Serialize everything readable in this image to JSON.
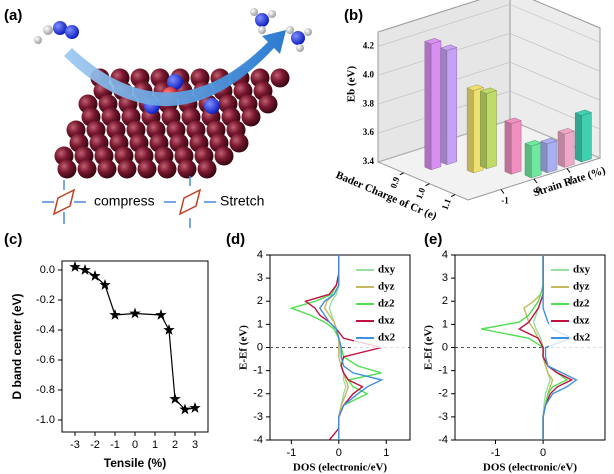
{
  "illustration": {
    "label": "(a)",
    "captions": [
      "compress",
      "Stretch"
    ]
  },
  "chart_data": [
    {
      "type": "bar3d",
      "panel_label": "(b)",
      "zlabel": "Eb (eV)",
      "xlabel": "Bader Charge of Cr (e)",
      "ylabel": "Strain Rate (%)",
      "values": [
        4.27,
        4.19,
        3.97,
        3.92,
        3.75,
        3.62,
        3.6,
        3.63,
        3.72
      ],
      "colors": [
        "#d890f0",
        "#c8a0f4",
        "#f0e070",
        "#c0dc68",
        "#f090c0",
        "#70e8a0",
        "#a8b0f0",
        "#f0a8c8",
        "#40d0b0"
      ],
      "zlim": [
        3.4,
        4.3
      ],
      "zticks": [
        3.4,
        3.6,
        3.8,
        {
          "value": 4,
          "label": "4.0"
        },
        4.2
      ],
      "xlim": [
        0.8,
        1.15
      ],
      "xticks": [
        0.9,
        {
          "value": 1,
          "label": "1.0"
        },
        1.1
      ],
      "ylim": [
        -2,
        2
      ],
      "yticks": [
        -1,
        0,
        1
      ]
    },
    {
      "type": "line",
      "panel_label": "(c)",
      "xlabel": "Tensile (%)",
      "ylabel": "D band center (eV)",
      "x": [
        -3,
        -2.5,
        -2,
        -1.5,
        -1,
        0,
        1.3,
        1.7,
        2,
        2.5,
        3
      ],
      "values": [
        0.02,
        0,
        -0.04,
        -0.1,
        -0.3,
        -0.29,
        -0.3,
        -0.4,
        -0.86,
        -0.93,
        -0.92
      ],
      "color": "#000000",
      "marker": "star",
      "xlim": [
        -3.65,
        3.65
      ],
      "xticks": [
        -3,
        -2,
        -1,
        0,
        1,
        2,
        3
      ],
      "ylim": [
        -1.08,
        0.06
      ],
      "yticks": [
        {
          "value": 0,
          "label": "0.0"
        },
        -0.2,
        -0.4,
        -0.6,
        -0.8,
        {
          "value": -1,
          "label": "-1.0"
        }
      ]
    },
    {
      "type": "dos",
      "panel_label": "(d)",
      "xlabel": "DOS (electronic/eV)",
      "ylabel": "E-Ef (eV)",
      "legend": "upper right",
      "y": [
        -4,
        -3.5,
        -3,
        -2.5,
        -2,
        -1.7,
        -1.4,
        -1.1,
        -0.8,
        -0.4,
        0,
        0.4,
        0.8,
        1.1,
        1.4,
        1.7,
        2,
        2.3,
        2.7,
        3.2,
        4
      ],
      "series": [
        {
          "name": "dxy",
          "color": "#98e0a0",
          "values": [
            0,
            0,
            0,
            0.05,
            0.1,
            0.15,
            0.1,
            0.1,
            0.05,
            0,
            0.02,
            0,
            -0.05,
            -0.1,
            -0.15,
            -0.2,
            -0.15,
            -0.05,
            0,
            0,
            0
          ]
        },
        {
          "name": "dyz",
          "color": "#c8b860",
          "values": [
            0,
            0,
            0,
            0.05,
            0.15,
            0.2,
            0.15,
            0.1,
            0.05,
            0,
            0,
            0,
            -0.05,
            -0.1,
            -0.2,
            -0.3,
            -0.25,
            -0.1,
            0,
            0,
            0
          ]
        },
        {
          "name": "dz2",
          "color": "#50e050",
          "values": [
            0,
            0,
            0,
            0.1,
            0.6,
            0.3,
            0.2,
            0.9,
            0.4,
            0.1,
            0.05,
            0,
            -0.1,
            -0.3,
            -0.6,
            -1.0,
            -0.5,
            -0.15,
            -0.05,
            0,
            0
          ]
        },
        {
          "name": "dxz",
          "color": "#c01040",
          "values": [
            -0.2,
            0,
            0,
            0.1,
            0.3,
            0.5,
            0.2,
            0.1,
            0.05,
            0.1,
            0.9,
            0.1,
            -0.05,
            -0.2,
            -0.4,
            -0.5,
            -0.7,
            -0.2,
            -0.05,
            0,
            0
          ]
        },
        {
          "name": "dx2",
          "color": "#4090e0",
          "values": [
            0,
            0,
            0,
            0.1,
            0.4,
            0.6,
            0.9,
            0.3,
            0.1,
            0.05,
            0.05,
            0,
            -0.05,
            -0.2,
            -0.3,
            -0.4,
            -0.3,
            -0.1,
            0,
            0,
            0
          ]
        }
      ],
      "xlim": [
        -1.45,
        1.5
      ],
      "xticks": [
        -1,
        0,
        1
      ],
      "ylim": [
        -4,
        4
      ],
      "yticks": [
        -4,
        -3,
        -2,
        -1,
        0,
        1,
        2,
        3,
        4
      ]
    },
    {
      "type": "dos",
      "panel_label": "(e)",
      "xlabel": "DOS (electronic/eV)",
      "ylabel": "E-Ef (eV)",
      "legend": "upper right",
      "y": [
        -4,
        -3.5,
        -3,
        -2.5,
        -2,
        -1.7,
        -1.4,
        -1.1,
        -0.8,
        -0.4,
        0,
        0.4,
        0.8,
        1.1,
        1.4,
        1.7,
        2,
        2.3,
        2.7,
        3.2,
        4
      ],
      "series": [
        {
          "name": "dxy",
          "color": "#98e0a0",
          "values": [
            0,
            0,
            0,
            0.02,
            0.05,
            0.1,
            0.15,
            0.1,
            0.05,
            0,
            0,
            -0.05,
            -0.15,
            -0.2,
            -0.15,
            -0.1,
            -0.05,
            0,
            0,
            0,
            0
          ]
        },
        {
          "name": "dyz",
          "color": "#c8b860",
          "values": [
            0,
            0,
            0,
            0.05,
            0.1,
            0.15,
            0.2,
            0.1,
            0.05,
            0,
            0,
            -0.1,
            -0.2,
            -0.3,
            -0.35,
            -0.4,
            -0.2,
            -0.05,
            0,
            0,
            0
          ]
        },
        {
          "name": "dz2",
          "color": "#50e050",
          "values": [
            0,
            0,
            0,
            0.05,
            0.1,
            0.2,
            0.5,
            0.3,
            0.1,
            0,
            0,
            -0.3,
            -1.3,
            -0.5,
            -0.3,
            -0.2,
            -0.1,
            -0.05,
            0,
            0,
            0
          ]
        },
        {
          "name": "dxz",
          "color": "#c01040",
          "values": [
            0,
            0,
            0,
            0.05,
            0.15,
            0.3,
            0.6,
            0.3,
            0.1,
            0,
            0,
            -0.1,
            -0.5,
            -0.3,
            -0.2,
            -0.1,
            -0.05,
            0,
            0,
            0,
            0
          ]
        },
        {
          "name": "dx2",
          "color": "#4090e0",
          "values": [
            0,
            0,
            0,
            0.05,
            0.2,
            0.5,
            0.7,
            0.4,
            0.1,
            0.05,
            0.05,
            0.6,
            0.2,
            0.1,
            0.05,
            0,
            0,
            0,
            0,
            0,
            0
          ]
        }
      ],
      "xlim": [
        -1.85,
        1.3
      ],
      "xticks": [
        -1,
        0
      ],
      "ylim": [
        -4,
        4
      ],
      "yticks": [
        -4,
        -3,
        -2,
        -1,
        0,
        1,
        2,
        3,
        4
      ]
    }
  ]
}
